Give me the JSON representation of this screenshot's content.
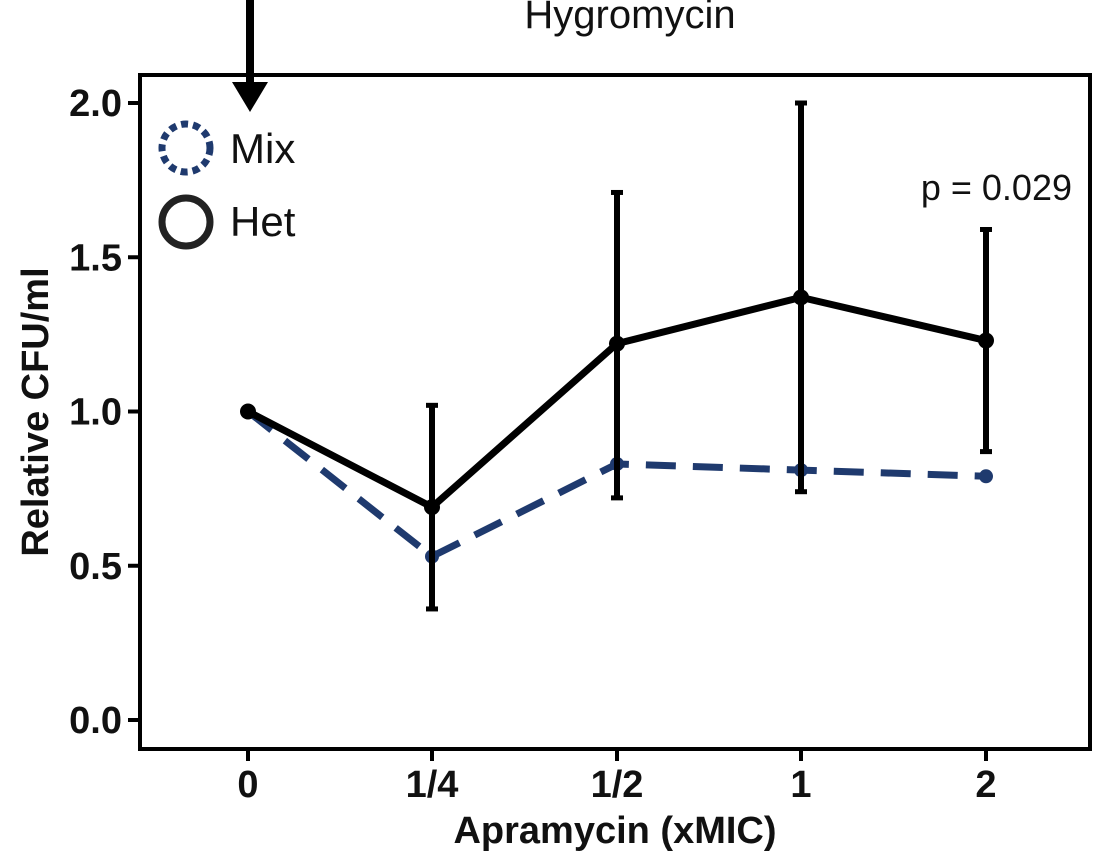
{
  "chart_data": {
    "type": "line",
    "title": "Hygromycin",
    "xlabel": "Apramycin (xMIC)",
    "ylabel": "Relative CFU/ml",
    "categories": [
      "0",
      "1/4",
      "1/2",
      "1",
      "2"
    ],
    "ylim": [
      0,
      2.0
    ],
    "yticks": [
      "0.0",
      "0.5",
      "1.0",
      "1.5",
      "2.0"
    ],
    "yticks_values": [
      0,
      0.5,
      1.0,
      1.5,
      2.0
    ],
    "grid": false,
    "legend_position": "top-left",
    "annotation": "p = 0.029",
    "series": [
      {
        "name": "Mix",
        "style": "dashed",
        "color": "#1f3a6e",
        "values": [
          1.0,
          0.53,
          0.83,
          0.81,
          0.79
        ]
      },
      {
        "name": "Het",
        "style": "solid",
        "color": "#000000",
        "values": [
          1.0,
          0.69,
          1.22,
          1.37,
          1.23
        ],
        "error_low": [
          null,
          0.36,
          0.72,
          0.74,
          0.87
        ],
        "error_high": [
          null,
          1.02,
          1.71,
          2.0,
          1.59
        ]
      }
    ]
  }
}
